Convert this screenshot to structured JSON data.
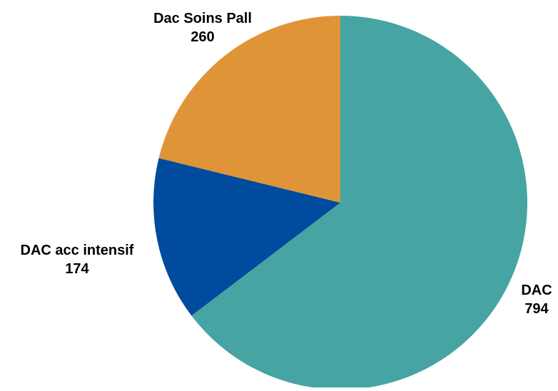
{
  "chart_data": {
    "type": "pie",
    "title": "",
    "start_angle_deg": 0,
    "direction": "clockwise",
    "slices": [
      {
        "label": "DAC",
        "value": 794,
        "color": "#46A4A3"
      },
      {
        "label": "DAC acc intensif",
        "value": 174,
        "color": "#004B9E"
      },
      {
        "label": "Dac Soins Pall",
        "value": 260,
        "color": "#E09438"
      }
    ]
  }
}
